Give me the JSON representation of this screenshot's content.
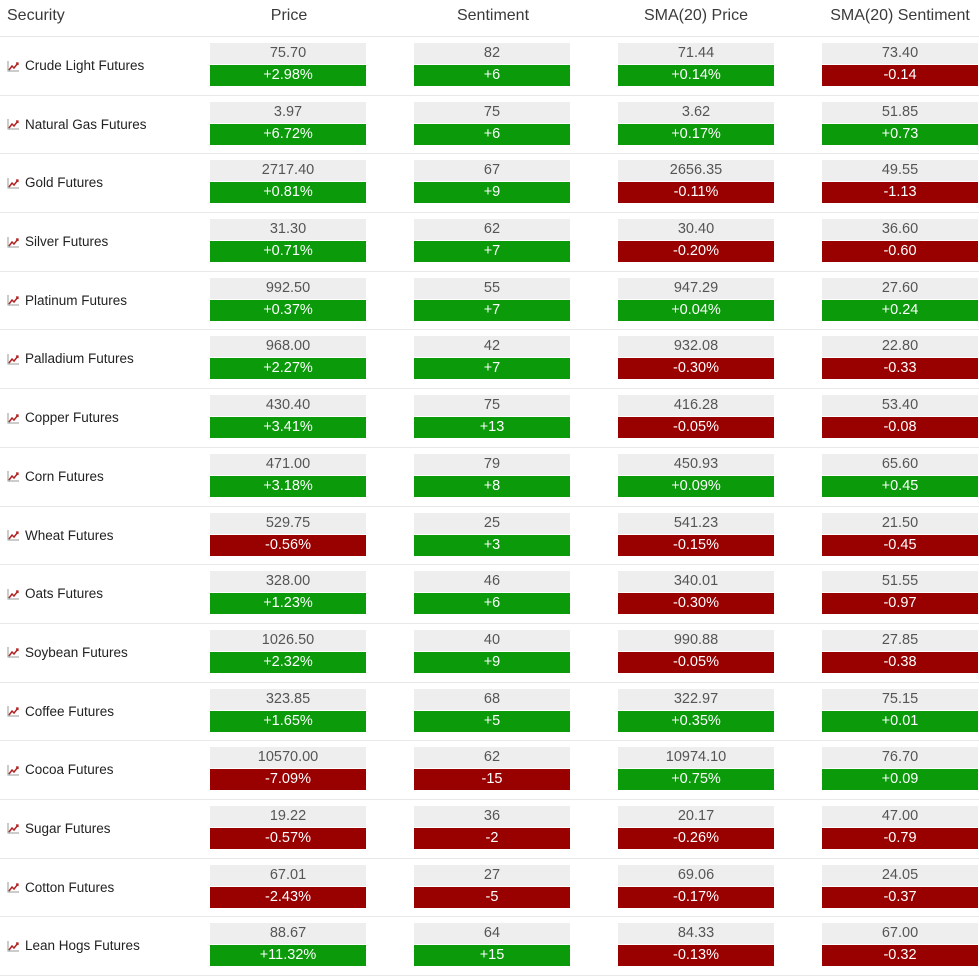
{
  "colors": {
    "positive": "#0a9a0a",
    "negative": "#990000",
    "value_bg": "#eeeeee"
  },
  "headers": {
    "security": "Security",
    "price": "Price",
    "sentiment": "Sentiment",
    "sma_price": "SMA(20) Price",
    "sma_sentiment": "SMA(20) Sentiment"
  },
  "row_icon": "chart-line-icon",
  "rows": [
    {
      "name": "Crude Light Futures",
      "price": "75.70",
      "price_chg": "+2.98%",
      "sent": "82",
      "sent_chg": "+6",
      "sma_price": "71.44",
      "sma_price_chg": "+0.14%",
      "sma_sent": "73.40",
      "sma_sent_chg": "-0.14"
    },
    {
      "name": "Natural Gas Futures",
      "price": "3.97",
      "price_chg": "+6.72%",
      "sent": "75",
      "sent_chg": "+6",
      "sma_price": "3.62",
      "sma_price_chg": "+0.17%",
      "sma_sent": "51.85",
      "sma_sent_chg": "+0.73"
    },
    {
      "name": "Gold Futures",
      "price": "2717.40",
      "price_chg": "+0.81%",
      "sent": "67",
      "sent_chg": "+9",
      "sma_price": "2656.35",
      "sma_price_chg": "-0.11%",
      "sma_sent": "49.55",
      "sma_sent_chg": "-1.13"
    },
    {
      "name": "Silver Futures",
      "price": "31.30",
      "price_chg": "+0.71%",
      "sent": "62",
      "sent_chg": "+7",
      "sma_price": "30.40",
      "sma_price_chg": "-0.20%",
      "sma_sent": "36.60",
      "sma_sent_chg": "-0.60"
    },
    {
      "name": "Platinum Futures",
      "price": "992.50",
      "price_chg": "+0.37%",
      "sent": "55",
      "sent_chg": "+7",
      "sma_price": "947.29",
      "sma_price_chg": "+0.04%",
      "sma_sent": "27.60",
      "sma_sent_chg": "+0.24"
    },
    {
      "name": "Palladium Futures",
      "price": "968.00",
      "price_chg": "+2.27%",
      "sent": "42",
      "sent_chg": "+7",
      "sma_price": "932.08",
      "sma_price_chg": "-0.30%",
      "sma_sent": "22.80",
      "sma_sent_chg": "-0.33"
    },
    {
      "name": "Copper Futures",
      "price": "430.40",
      "price_chg": "+3.41%",
      "sent": "75",
      "sent_chg": "+13",
      "sma_price": "416.28",
      "sma_price_chg": "-0.05%",
      "sma_sent": "53.40",
      "sma_sent_chg": "-0.08"
    },
    {
      "name": "Corn Futures",
      "price": "471.00",
      "price_chg": "+3.18%",
      "sent": "79",
      "sent_chg": "+8",
      "sma_price": "450.93",
      "sma_price_chg": "+0.09%",
      "sma_sent": "65.60",
      "sma_sent_chg": "+0.45"
    },
    {
      "name": "Wheat Futures",
      "price": "529.75",
      "price_chg": "-0.56%",
      "sent": "25",
      "sent_chg": "+3",
      "sma_price": "541.23",
      "sma_price_chg": "-0.15%",
      "sma_sent": "21.50",
      "sma_sent_chg": "-0.45"
    },
    {
      "name": "Oats Futures",
      "price": "328.00",
      "price_chg": "+1.23%",
      "sent": "46",
      "sent_chg": "+6",
      "sma_price": "340.01",
      "sma_price_chg": "-0.30%",
      "sma_sent": "51.55",
      "sma_sent_chg": "-0.97"
    },
    {
      "name": "Soybean Futures",
      "price": "1026.50",
      "price_chg": "+2.32%",
      "sent": "40",
      "sent_chg": "+9",
      "sma_price": "990.88",
      "sma_price_chg": "-0.05%",
      "sma_sent": "27.85",
      "sma_sent_chg": "-0.38"
    },
    {
      "name": "Coffee Futures",
      "price": "323.85",
      "price_chg": "+1.65%",
      "sent": "68",
      "sent_chg": "+5",
      "sma_price": "322.97",
      "sma_price_chg": "+0.35%",
      "sma_sent": "75.15",
      "sma_sent_chg": "+0.01"
    },
    {
      "name": "Cocoa Futures",
      "price": "10570.00",
      "price_chg": "-7.09%",
      "sent": "62",
      "sent_chg": "-15",
      "sma_price": "10974.10",
      "sma_price_chg": "+0.75%",
      "sma_sent": "76.70",
      "sma_sent_chg": "+0.09"
    },
    {
      "name": "Sugar Futures",
      "price": "19.22",
      "price_chg": "-0.57%",
      "sent": "36",
      "sent_chg": "-2",
      "sma_price": "20.17",
      "sma_price_chg": "-0.26%",
      "sma_sent": "47.00",
      "sma_sent_chg": "-0.79"
    },
    {
      "name": "Cotton Futures",
      "price": "67.01",
      "price_chg": "-2.43%",
      "sent": "27",
      "sent_chg": "-5",
      "sma_price": "69.06",
      "sma_price_chg": "-0.17%",
      "sma_sent": "24.05",
      "sma_sent_chg": "-0.37"
    },
    {
      "name": "Lean Hogs Futures",
      "price": "88.67",
      "price_chg": "+11.32%",
      "sent": "64",
      "sent_chg": "+15",
      "sma_price": "84.33",
      "sma_price_chg": "-0.13%",
      "sma_sent": "67.00",
      "sma_sent_chg": "-0.32"
    }
  ]
}
